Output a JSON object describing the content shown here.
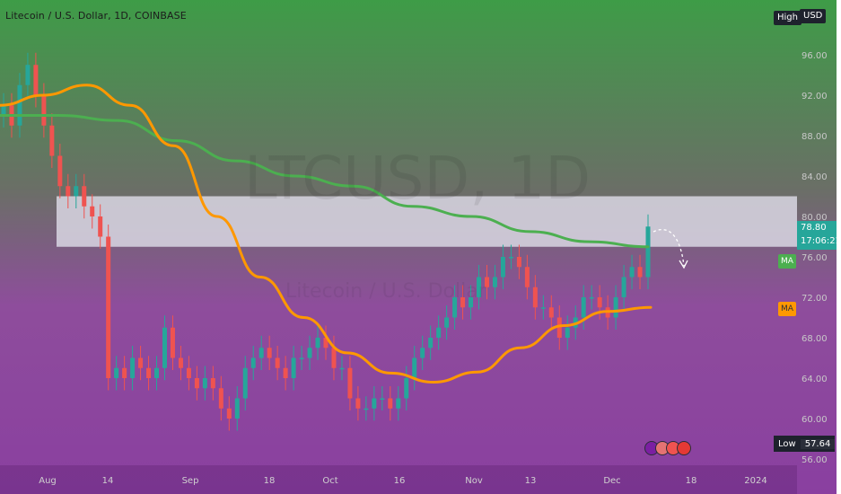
{
  "header": {
    "title": "Litecoin / U.S. Dollar, 1D, COINBASE"
  },
  "watermark": {
    "symbol": "LTCUSD, 1D",
    "sub": "Litecoin / U.S. Dollar"
  },
  "axis": {
    "currency": "USD",
    "high_label": "High",
    "low_label": "Low",
    "low_value": "57.64",
    "last_price": "78.80",
    "countdown": "17:06:21",
    "ma_label": "MA"
  },
  "colors": {
    "up": "#26a69a",
    "down": "#ef5350",
    "ma_fast": "#ff9800",
    "ma_slow": "#4caf50",
    "zone": "#d9d7e3"
  },
  "chart_data": {
    "type": "candlestick",
    "symbol": "Litecoin / U.S. Dollar",
    "interval": "1D",
    "exchange": "COINBASE",
    "ylim": [
      55,
      100
    ],
    "y_ticks": [
      56,
      60,
      64,
      68,
      72,
      76,
      80,
      84,
      88,
      92,
      96
    ],
    "x_ticks": [
      "Aug",
      "14",
      "Sep",
      "18",
      "Oct",
      "16",
      "Nov",
      "13",
      "Dec",
      "18",
      "2024"
    ],
    "resistance_zone": [
      77.0,
      82.0
    ],
    "high": null,
    "low": 57.64,
    "last": 78.8,
    "ma_fast": [
      91,
      92,
      93,
      91,
      87,
      80,
      74,
      70,
      66.5,
      64.5,
      63.6,
      64.6,
      67.0,
      69.2,
      70.6,
      71.0
    ],
    "ma_slow": [
      90,
      90,
      89.5,
      87.5,
      85.5,
      84,
      83,
      81,
      80,
      78.5,
      77.5,
      77.0
    ],
    "closes": [
      91,
      89,
      93,
      95,
      92,
      89,
      86,
      83,
      82,
      83,
      81,
      80,
      78,
      64,
      65,
      64,
      66,
      65,
      64,
      65,
      69,
      66,
      65,
      64,
      63,
      64,
      63,
      61,
      60,
      62,
      65,
      66,
      67,
      66,
      65,
      64,
      66,
      66,
      67,
      68,
      67,
      65,
      65,
      62,
      61,
      61,
      62,
      62,
      61,
      62,
      64,
      66,
      67,
      68,
      69,
      70,
      72,
      71,
      72,
      74,
      73,
      74,
      76,
      76,
      75,
      73,
      71,
      71,
      70,
      68,
      69,
      70,
      72,
      72,
      71,
      70,
      72,
      74,
      75,
      74,
      79
    ]
  }
}
